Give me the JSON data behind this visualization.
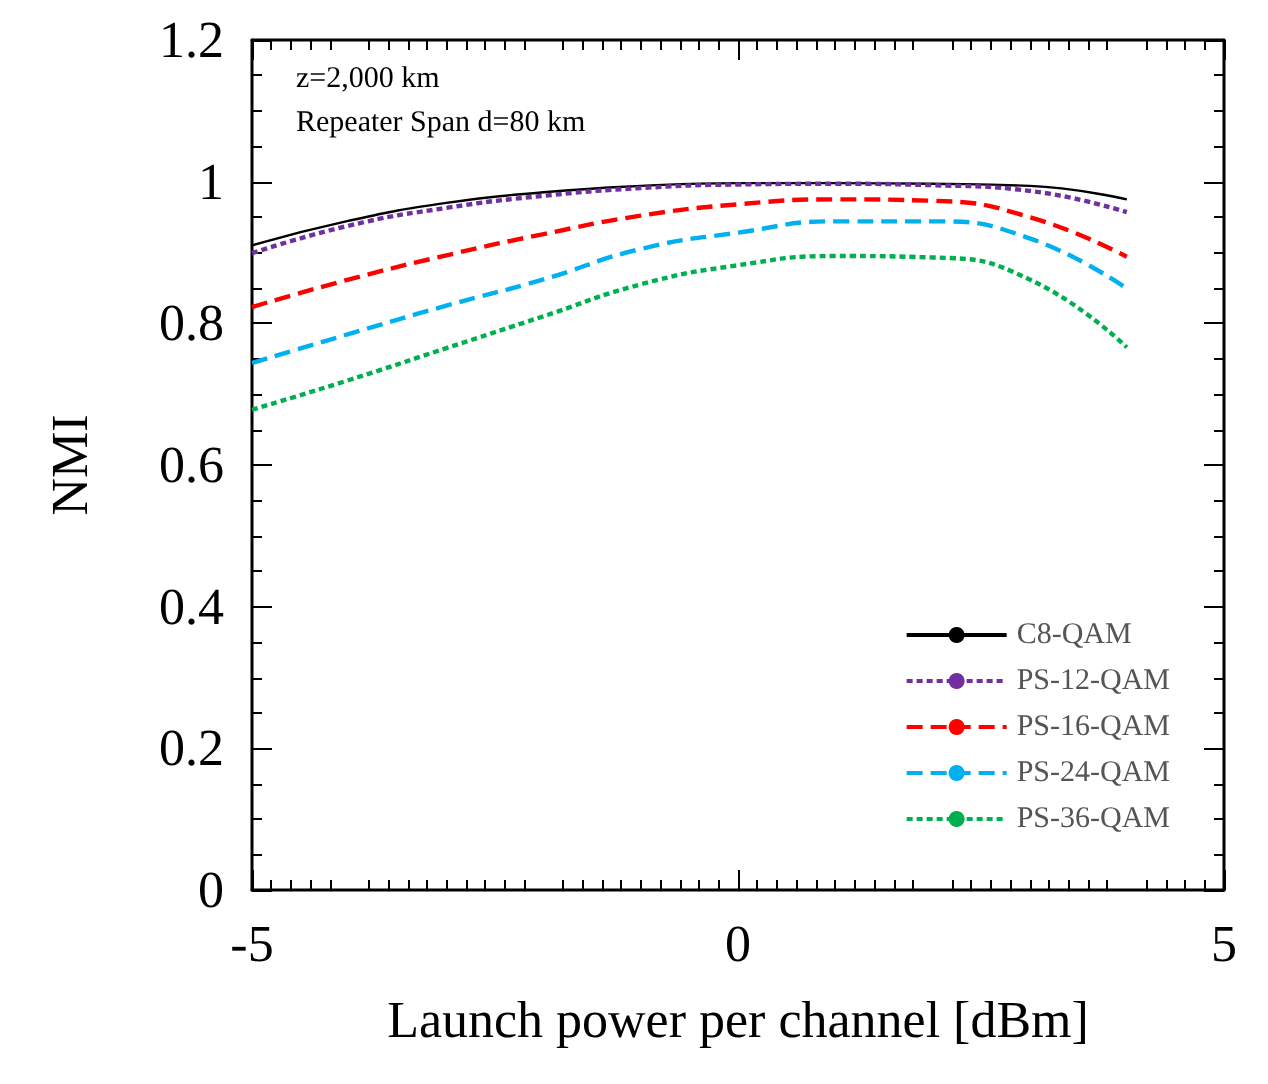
{
  "chart_data": {
    "type": "line",
    "xlabel": "Launch power per channel [dBm]",
    "ylabel": "NMI",
    "annotations": [
      "z=2,000 km",
      "Repeater Span d=80 km"
    ],
    "x": [
      -5,
      -4,
      -3,
      -2,
      -1,
      0,
      1,
      2,
      3,
      4
    ],
    "xlim": [
      -5,
      5
    ],
    "xticks": [
      -5,
      0,
      5
    ],
    "ylim": [
      0,
      1.2
    ],
    "yticks": [
      0,
      0.2,
      0.4,
      0.6,
      0.8,
      1,
      1.2
    ],
    "grid": false,
    "legend": "bottom right",
    "marker": "none",
    "series": [
      {
        "name": "C8-QAM",
        "color": "#000000",
        "line_style": "solid",
        "values": [
          0.91,
          0.945,
          0.97,
          0.985,
          0.994,
          0.998,
          0.998,
          0.997,
          0.994,
          0.975
        ]
      },
      {
        "name": "PS-12-QAM",
        "color": "#7030a0",
        "line_style": "dotted",
        "values": [
          0.899,
          0.938,
          0.963,
          0.98,
          0.991,
          0.996,
          0.997,
          0.995,
          0.987,
          0.957
        ]
      },
      {
        "name": "PS-16-QAM",
        "color": "#ff0000",
        "line_style": "dashed",
        "values": [
          0.823,
          0.862,
          0.896,
          0.926,
          0.952,
          0.968,
          0.975,
          0.973,
          0.95,
          0.894
        ]
      },
      {
        "name": "PS-24-QAM",
        "color": "#00b0f0",
        "line_style": "dashed",
        "values": [
          0.744,
          0.785,
          0.825,
          0.862,
          0.905,
          0.928,
          0.944,
          0.944,
          0.92,
          0.849
        ]
      },
      {
        "name": "PS-36-QAM",
        "color": "#00b050",
        "line_style": "dotted",
        "values": [
          0.678,
          0.72,
          0.765,
          0.81,
          0.855,
          0.882,
          0.895,
          0.893,
          0.862,
          0.766
        ]
      }
    ]
  }
}
